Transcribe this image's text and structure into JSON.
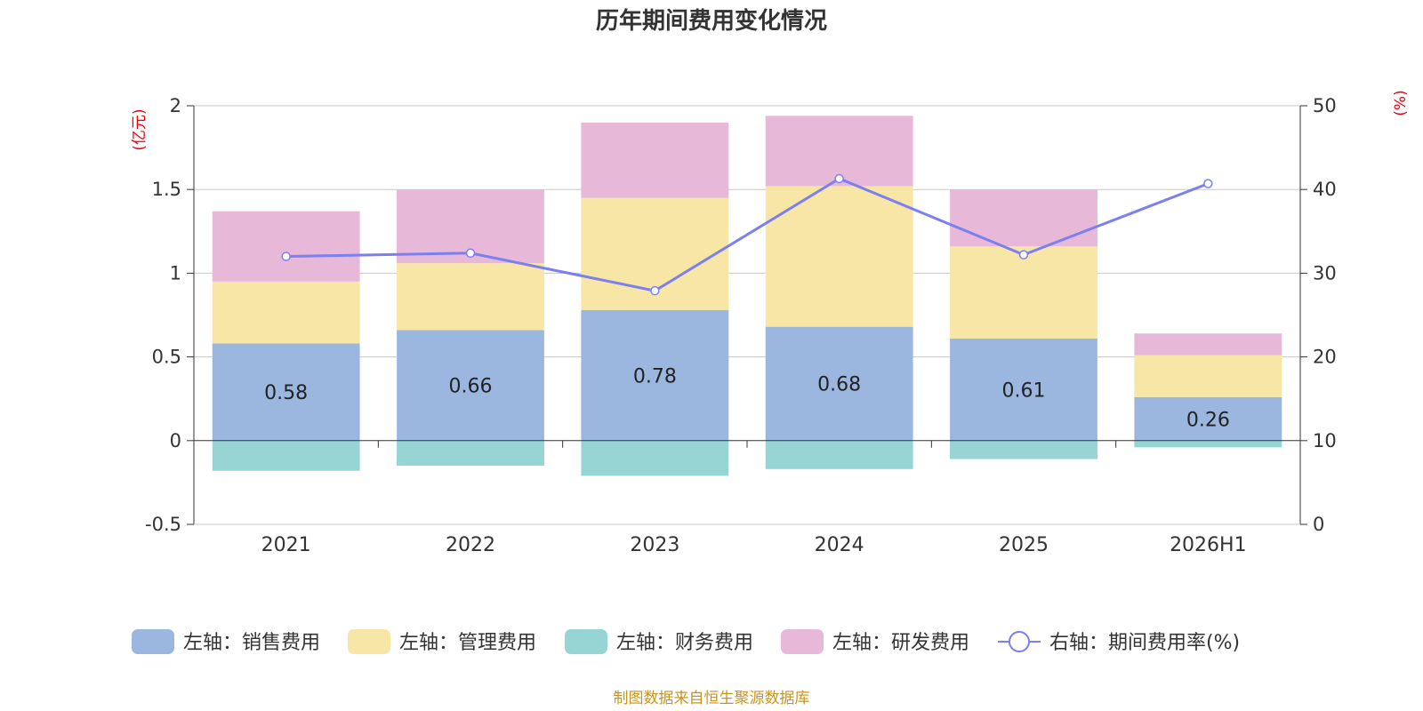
{
  "chart_data": {
    "type": "bar",
    "title": "历年期间费用变化情况",
    "categories": [
      "2021",
      "2022",
      "2023",
      "2024",
      "2025",
      "2026H1"
    ],
    "left_axis": {
      "unit": "(亿元)",
      "ylim": [
        -0.5,
        2
      ],
      "ticks": [
        2,
        1.5,
        1,
        0.5,
        0,
        -0.5
      ],
      "tick_labels": [
        "2",
        "1.5",
        "1",
        "0.5",
        "0",
        "-0.5"
      ]
    },
    "right_axis": {
      "unit": "(%)",
      "ylim": [
        0,
        50
      ],
      "ticks": [
        50,
        40,
        30,
        20,
        10,
        0
      ],
      "tick_labels": [
        "50",
        "40",
        "30",
        "20",
        "10",
        "0"
      ]
    },
    "series": [
      {
        "name": "左轴：销售费用",
        "type": "bar",
        "axis": "left",
        "color": "#9bb7e0",
        "values": [
          0.58,
          0.66,
          0.78,
          0.68,
          0.61,
          0.26
        ],
        "data_labels": [
          "0.58",
          "0.66",
          "0.78",
          "0.68",
          "0.61",
          "0.26"
        ]
      },
      {
        "name": "左轴：管理费用",
        "type": "bar",
        "axis": "left",
        "color": "#f7e6a6",
        "values": [
          0.37,
          0.4,
          0.67,
          0.84,
          0.55,
          0.25
        ]
      },
      {
        "name": "左轴：财务费用",
        "type": "bar",
        "axis": "left",
        "color": "#97d4d4",
        "values": [
          -0.18,
          -0.15,
          -0.21,
          -0.17,
          -0.11,
          -0.04
        ]
      },
      {
        "name": "左轴：研发费用",
        "type": "bar",
        "axis": "left",
        "color": "#e8b8d9",
        "values": [
          0.42,
          0.44,
          0.45,
          0.42,
          0.34,
          0.13
        ]
      },
      {
        "name": "右轴：期间费用率(%)",
        "type": "line",
        "axis": "right",
        "color": "#7b7ff0",
        "values": [
          32.0,
          32.4,
          27.9,
          41.3,
          32.2,
          40.7
        ]
      }
    ],
    "grid": true,
    "legend_position": "bottom",
    "source": "制图数据来自恒生聚源数据库"
  }
}
